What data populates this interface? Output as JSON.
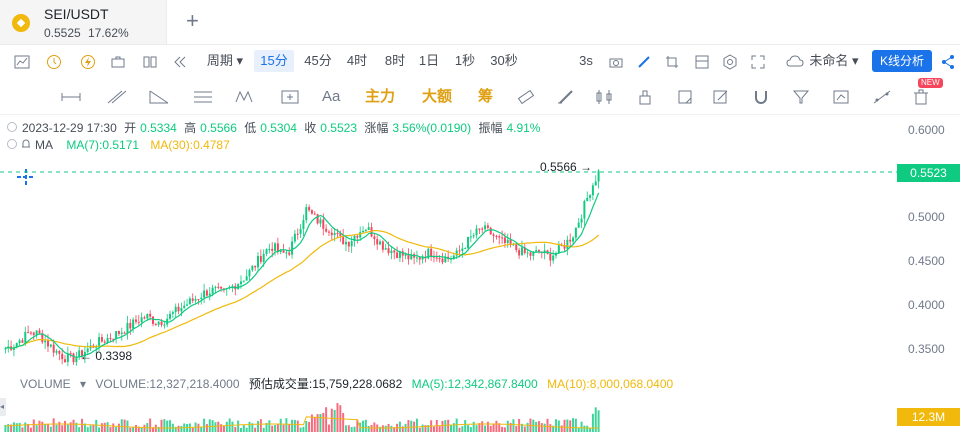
{
  "tab": {
    "title": "SEI/USDT",
    "price": "0.5525",
    "change_pct": "17.62%",
    "add": "+"
  },
  "toolbar": {
    "period_label": "周期",
    "intervals": [
      "15分",
      "45分",
      "4时",
      "8时",
      "1日",
      "1秒",
      "30秒"
    ],
    "active_interval": "15分",
    "refresh": "3s",
    "layout_name": "未命名",
    "kline_button": "K线分析"
  },
  "drawbar": {
    "text_tool": "Aa",
    "main_force": "主力",
    "large_order": "大额",
    "chips": "筹",
    "new_badge": "NEW"
  },
  "info": {
    "datetime": "2023-12-29 17:30",
    "open_label": "开",
    "open": "0.5334",
    "high_label": "高",
    "high": "0.5566",
    "low_label": "低",
    "low": "0.5304",
    "close_label": "收",
    "close": "0.5523",
    "change_label": "涨幅",
    "change": "3.56%(0.0190)",
    "amp_label": "振幅",
    "amp": "4.91%",
    "ma_label": "MA",
    "ma7": "MA(7):0.5171",
    "ma30": "MA(30):0.4787"
  },
  "volume": {
    "label": "VOLUME",
    "value": "VOLUME:12,327,218.4000",
    "estimate": "预估成交量:15,759,228.0682",
    "ma5": "MA(5):12,342,867.8400",
    "ma10": "MA(10):8,000,068.0400",
    "tag": "12.3M"
  },
  "yaxis": {
    "labels": [
      "0.6000",
      "0.5000",
      "0.4500",
      "0.4000",
      "0.3500"
    ],
    "current": "0.5523"
  },
  "chart_data": {
    "type": "line",
    "title": "",
    "ylim": [
      0.32,
      0.62
    ],
    "high_marker": "0.5566",
    "low_marker": "0.3398",
    "close_series": [
      0.352,
      0.356,
      0.363,
      0.371,
      0.368,
      0.358,
      0.349,
      0.342,
      0.34,
      0.345,
      0.352,
      0.358,
      0.362,
      0.367,
      0.372,
      0.378,
      0.385,
      0.388,
      0.382,
      0.384,
      0.391,
      0.398,
      0.404,
      0.41,
      0.416,
      0.418,
      0.414,
      0.421,
      0.428,
      0.436,
      0.448,
      0.462,
      0.468,
      0.458,
      0.463,
      0.485,
      0.51,
      0.5,
      0.492,
      0.487,
      0.476,
      0.472,
      0.482,
      0.49,
      0.482,
      0.47,
      0.464,
      0.46,
      0.456,
      0.452,
      0.458,
      0.462,
      0.456,
      0.454,
      0.458,
      0.47,
      0.48,
      0.488,
      0.483,
      0.475,
      0.47,
      0.465,
      0.46,
      0.458,
      0.462,
      0.456,
      0.461,
      0.47,
      0.482,
      0.506,
      0.532,
      0.552
    ],
    "colors": {
      "up": "#0ecb81",
      "down": "#f6465d",
      "ma7": "#0ecb81",
      "ma30": "#f0b90b"
    }
  }
}
